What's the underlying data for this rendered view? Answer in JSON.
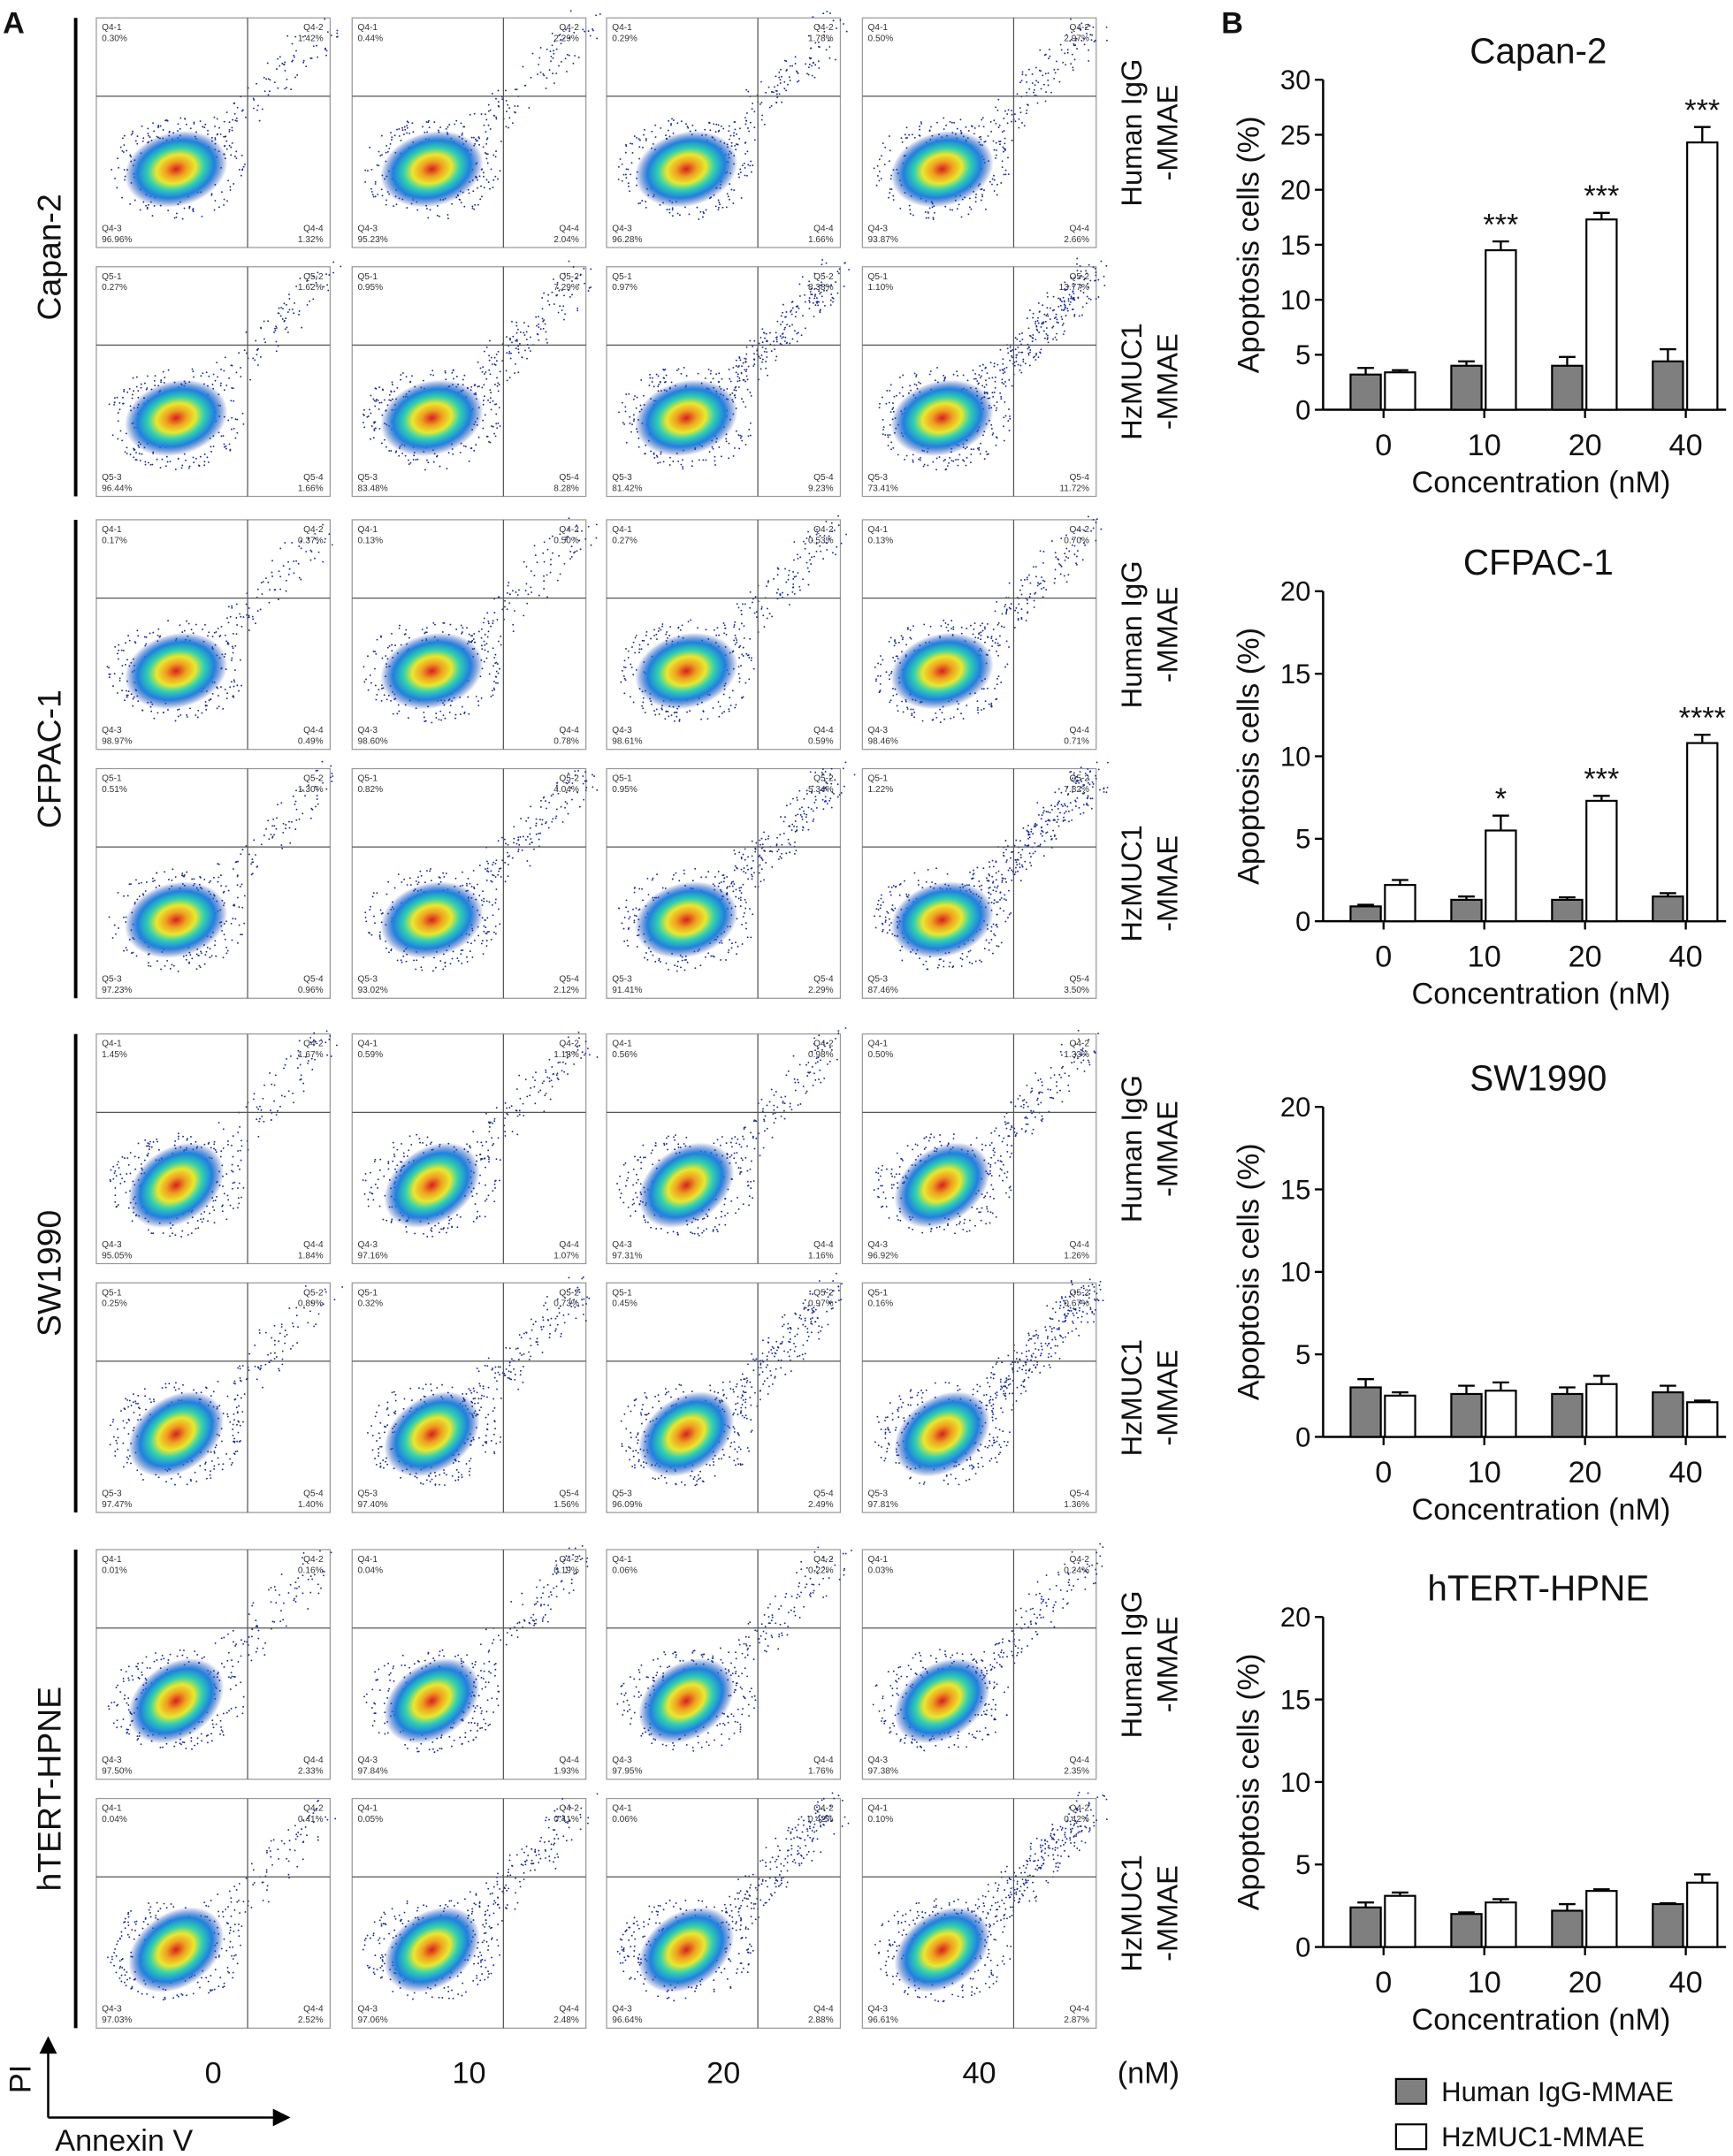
{
  "panel_a": {
    "label": "A",
    "column_labels": [
      "0",
      "10",
      "20",
      "40"
    ],
    "unit": "(nM)",
    "y_axis": "PI",
    "x_axis": "Annexin V",
    "groups": [
      "Capan-2",
      "CFPAC-1",
      "SW1990",
      "hTERT-HPNE"
    ],
    "treatments": [
      [
        "Human IgG",
        "-MMAE"
      ],
      [
        "HzMUC1",
        "-MMAE"
      ]
    ],
    "rows": [
      {
        "gates": [
          "Q4-1",
          "Q4-2",
          "Q4-3",
          "Q4-4"
        ],
        "plots": [
          [
            "0.30%",
            "1.42%",
            "96.96%",
            "1.32%"
          ],
          [
            "0.44%",
            "2.29%",
            "95.23%",
            "2.04%"
          ],
          [
            "0.29%",
            "1.78%",
            "96.28%",
            "1.66%"
          ],
          [
            "0.50%",
            "2.97%",
            "93.87%",
            "2.66%"
          ]
        ]
      },
      {
        "gates": [
          "Q5-1",
          "Q5-2",
          "Q5-3",
          "Q5-4"
        ],
        "plots": [
          [
            "0.27%",
            "1.62%",
            "96.44%",
            "1.66%"
          ],
          [
            "0.95%",
            "7.29%",
            "83.48%",
            "8.28%"
          ],
          [
            "0.97%",
            "8.38%",
            "81.42%",
            "9.23%"
          ],
          [
            "1.10%",
            "13.77%",
            "73.41%",
            "11.72%"
          ]
        ]
      },
      {
        "gates": [
          "Q4-1",
          "Q4-2",
          "Q4-3",
          "Q4-4"
        ],
        "plots": [
          [
            "0.17%",
            "0.37%",
            "98.97%",
            "0.49%"
          ],
          [
            "0.13%",
            "0.50%",
            "98.60%",
            "0.78%"
          ],
          [
            "0.27%",
            "0.53%",
            "98.61%",
            "0.59%"
          ],
          [
            "0.13%",
            "0.70%",
            "98.46%",
            "0.71%"
          ]
        ]
      },
      {
        "gates": [
          "Q5-1",
          "Q5-2",
          "Q5-3",
          "Q5-4"
        ],
        "plots": [
          [
            "0.51%",
            "1.30%",
            "97.23%",
            "0.96%"
          ],
          [
            "0.82%",
            "4.04%",
            "93.02%",
            "2.12%"
          ],
          [
            "0.95%",
            "5.34%",
            "91.41%",
            "2.29%"
          ],
          [
            "1.22%",
            "7.82%",
            "87.46%",
            "3.50%"
          ]
        ]
      },
      {
        "gates": [
          "Q4-1",
          "Q4-2",
          "Q4-3",
          "Q4-4"
        ],
        "plots": [
          [
            "1.45%",
            "1.67%",
            "95.05%",
            "1.84%"
          ],
          [
            "0.59%",
            "1.18%",
            "97.16%",
            "1.07%"
          ],
          [
            "0.56%",
            "0.98%",
            "97.31%",
            "1.16%"
          ],
          [
            "0.50%",
            "1.33%",
            "96.92%",
            "1.26%"
          ]
        ]
      },
      {
        "gates": [
          "Q5-1",
          "Q5-2",
          "Q5-3",
          "Q5-4"
        ],
        "plots": [
          [
            "0.25%",
            "0.89%",
            "97.47%",
            "1.40%"
          ],
          [
            "0.32%",
            "0.73%",
            "97.40%",
            "1.56%"
          ],
          [
            "0.45%",
            "0.97%",
            "96.09%",
            "2.49%"
          ],
          [
            "0.16%",
            "0.67%",
            "97.81%",
            "1.36%"
          ]
        ]
      },
      {
        "gates": [
          "Q4-1",
          "Q4-2",
          "Q4-3",
          "Q4-4"
        ],
        "plots": [
          [
            "0.01%",
            "0.16%",
            "97.50%",
            "2.33%"
          ],
          [
            "0.04%",
            "0.19%",
            "97.84%",
            "1.93%"
          ],
          [
            "0.06%",
            "0.22%",
            "97.95%",
            "1.76%"
          ],
          [
            "0.03%",
            "0.24%",
            "97.38%",
            "2.35%"
          ]
        ]
      },
      {
        "gates": [
          "Q4-1",
          "Q4-2",
          "Q4-3",
          "Q4-4"
        ],
        "plots": [
          [
            "0.04%",
            "0.41%",
            "97.03%",
            "2.52%"
          ],
          [
            "0.05%",
            "0.41%",
            "97.06%",
            "2.48%"
          ],
          [
            "0.06%",
            "0.42%",
            "96.64%",
            "2.88%"
          ],
          [
            "0.10%",
            "0.42%",
            "96.61%",
            "2.87%"
          ]
        ]
      }
    ]
  },
  "panel_b": {
    "label": "B"
  },
  "chart_data": [
    {
      "type": "bar",
      "title": "Capan-2",
      "y_label": "Apoptosis cells (%)",
      "x_label": "Concentration (nM)",
      "categories": [
        "0",
        "10",
        "20",
        "40"
      ],
      "ylim": [
        0,
        30
      ],
      "yticks": [
        0,
        5,
        10,
        15,
        20,
        25,
        30
      ],
      "series": [
        {
          "name": "Human IgG-MMAE",
          "color": "#7f7f7f",
          "values": [
            3.2,
            4.0,
            4.0,
            4.4
          ],
          "errors": [
            0.6,
            0.4,
            0.8,
            1.1
          ]
        },
        {
          "name": "HzMUC1-MMAE",
          "color": "#ffffff",
          "values": [
            3.4,
            14.5,
            17.3,
            24.3
          ],
          "errors": [
            0.2,
            0.8,
            0.6,
            1.4
          ],
          "significance": [
            null,
            "***",
            "***",
            "***"
          ]
        }
      ]
    },
    {
      "type": "bar",
      "title": "CFPAC-1",
      "y_label": "Apoptosis cells (%)",
      "x_label": "Concentration (nM)",
      "categories": [
        "0",
        "10",
        "20",
        "40"
      ],
      "ylim": [
        0,
        20
      ],
      "yticks": [
        0,
        5,
        10,
        15,
        20
      ],
      "series": [
        {
          "name": "Human IgG-MMAE",
          "color": "#7f7f7f",
          "values": [
            0.9,
            1.3,
            1.3,
            1.5
          ],
          "errors": [
            0.1,
            0.2,
            0.15,
            0.2
          ]
        },
        {
          "name": "HzMUC1-MMAE",
          "color": "#ffffff",
          "values": [
            2.2,
            5.5,
            7.3,
            10.8
          ],
          "errors": [
            0.3,
            0.9,
            0.3,
            0.5
          ],
          "significance": [
            null,
            "*",
            "***",
            "****"
          ]
        }
      ]
    },
    {
      "type": "bar",
      "title": "SW1990",
      "y_label": "Apoptosis cells (%)",
      "x_label": "Concentration (nM)",
      "categories": [
        "0",
        "10",
        "20",
        "40"
      ],
      "ylim": [
        0,
        20
      ],
      "yticks": [
        0,
        5,
        10,
        15,
        20
      ],
      "series": [
        {
          "name": "Human IgG-MMAE",
          "color": "#7f7f7f",
          "values": [
            3.0,
            2.6,
            2.6,
            2.7
          ],
          "errors": [
            0.5,
            0.5,
            0.4,
            0.4
          ]
        },
        {
          "name": "HzMUC1-MMAE",
          "color": "#ffffff",
          "values": [
            2.5,
            2.8,
            3.2,
            2.1
          ],
          "errors": [
            0.2,
            0.5,
            0.5,
            0.1
          ]
        }
      ]
    },
    {
      "type": "bar",
      "title": "hTERT-HPNE",
      "y_label": "Apoptosis cells (%)",
      "x_label": "Concentration (nM)",
      "categories": [
        "0",
        "10",
        "20",
        "40"
      ],
      "ylim": [
        0,
        20
      ],
      "yticks": [
        0,
        5,
        10,
        15,
        20
      ],
      "series": [
        {
          "name": "Human IgG-MMAE",
          "color": "#7f7f7f",
          "values": [
            2.4,
            2.0,
            2.2,
            2.6
          ],
          "errors": [
            0.3,
            0.1,
            0.4,
            0.05
          ]
        },
        {
          "name": "HzMUC1-MMAE",
          "color": "#ffffff",
          "values": [
            3.1,
            2.7,
            3.4,
            3.9
          ],
          "errors": [
            0.2,
            0.2,
            0.1,
            0.5
          ]
        }
      ]
    }
  ]
}
